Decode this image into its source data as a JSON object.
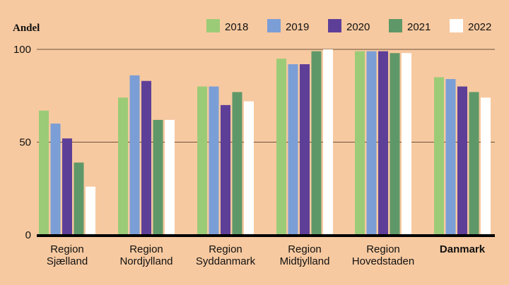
{
  "chart_data": {
    "type": "bar",
    "ylabel": "Andel",
    "ylim": [
      0,
      100
    ],
    "yticks": [
      0,
      50,
      100
    ],
    "categories": [
      {
        "lines": [
          "Region",
          "Sjælland"
        ],
        "bold": false
      },
      {
        "lines": [
          "Region",
          "Nordjylland"
        ],
        "bold": false
      },
      {
        "lines": [
          "Region",
          "Syddanmark"
        ],
        "bold": false
      },
      {
        "lines": [
          "Region",
          "Midtjylland"
        ],
        "bold": false
      },
      {
        "lines": [
          "Region",
          "Hovedstaden"
        ],
        "bold": false
      },
      {
        "lines": [
          "Danmark"
        ],
        "bold": true
      }
    ],
    "series": [
      {
        "name": "2018",
        "color": "#9CCB77",
        "values": [
          67,
          74,
          80,
          95,
          99,
          85
        ]
      },
      {
        "name": "2019",
        "color": "#7B9ED6",
        "values": [
          60,
          86,
          80,
          92,
          99,
          84
        ]
      },
      {
        "name": "2020",
        "color": "#5E3F98",
        "values": [
          52,
          83,
          70,
          92,
          99,
          80
        ]
      },
      {
        "name": "2021",
        "color": "#5F9868",
        "values": [
          39,
          62,
          77,
          99,
          98,
          77
        ]
      },
      {
        "name": "2022",
        "color": "#FFFFFF",
        "values": [
          26,
          62,
          72,
          100,
          98,
          74
        ]
      }
    ]
  }
}
